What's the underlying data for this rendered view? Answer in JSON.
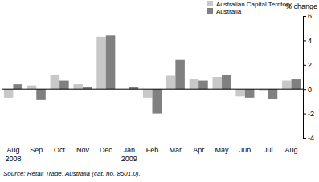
{
  "chart_data": {
    "type": "bar",
    "ylabel": "% change",
    "categories": [
      "Aug 2008",
      "Sep",
      "Oct",
      "Nov",
      "Dec",
      "Jan 2009",
      "Feb",
      "Mar",
      "Apr",
      "May",
      "Jun",
      "Jul",
      "Aug"
    ],
    "series": [
      {
        "name": "Australian Capital Territory",
        "color": "#c8c8c8",
        "values": [
          -0.7,
          0.3,
          1.2,
          0.4,
          4.3,
          0.0,
          -0.7,
          1.1,
          0.8,
          1.0,
          -0.6,
          -0.1,
          0.7
        ]
      },
      {
        "name": "Australia",
        "color": "#808080",
        "values": [
          0.4,
          -0.9,
          0.7,
          0.2,
          4.4,
          0.15,
          -2.0,
          2.4,
          0.7,
          1.2,
          -0.7,
          -0.8,
          0.8
        ]
      }
    ],
    "ylim": [
      -4,
      6
    ],
    "yticks": [
      -4,
      -2,
      0,
      2,
      4,
      6
    ],
    "legend": "top-left",
    "annotations": [
      "Source: Retail Trade, Australia (cat. no. 8501.0)."
    ]
  }
}
